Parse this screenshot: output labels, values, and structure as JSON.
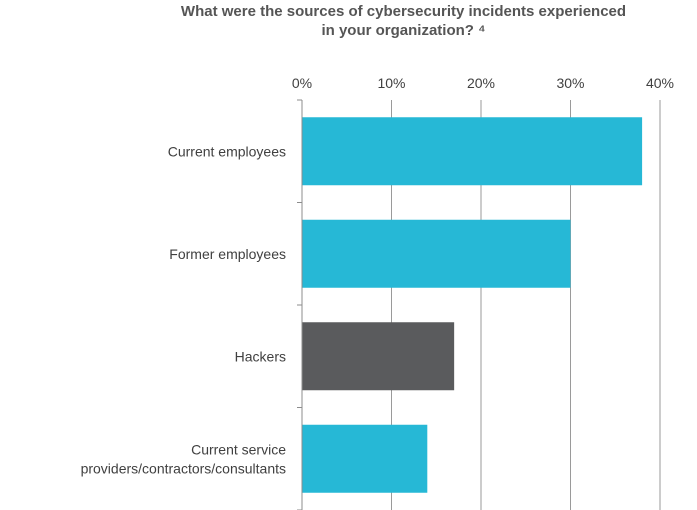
{
  "chart_data": {
    "type": "bar",
    "orientation": "horizontal",
    "title_lines": [
      "What were the sources of cybersecurity incidents experienced",
      "in your organization? ⁴"
    ],
    "categories": [
      [
        "Current employees"
      ],
      [
        "Former employees"
      ],
      [
        "Hackers"
      ],
      [
        "Current service",
        "providers/contractors/consultants"
      ]
    ],
    "values": [
      38,
      30,
      17,
      14
    ],
    "bar_colors": [
      "#26b8d6",
      "#26b8d6",
      "#5a5b5d",
      "#26b8d6"
    ],
    "x_ticks": [
      "0%",
      "10%",
      "20%",
      "30%",
      "40%"
    ],
    "xlim": [
      0,
      40
    ],
    "xaxis_position": "top",
    "grid": true,
    "xlabel": "",
    "ylabel": ""
  }
}
